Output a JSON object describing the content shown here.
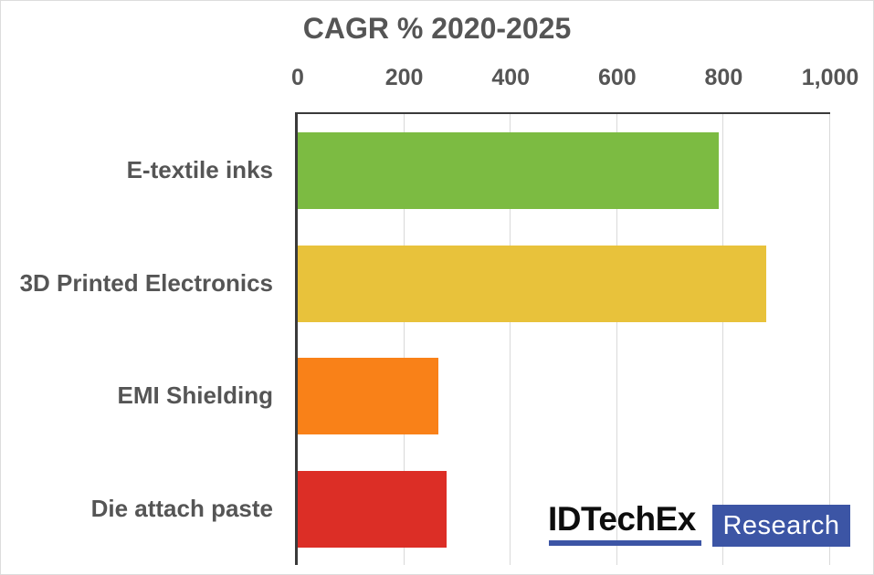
{
  "chart_data": {
    "type": "bar",
    "orientation": "horizontal",
    "title": "CAGR % 2020-2025",
    "categories": [
      "E-textile inks",
      "3D Printed Electronics",
      "EMI Shielding",
      "Die attach paste"
    ],
    "values": [
      790,
      880,
      265,
      280
    ],
    "bar_colors": [
      "#7cbb42",
      "#e8c23b",
      "#f98118",
      "#dc2e26"
    ],
    "xlim": [
      0,
      1000
    ],
    "x_tick_values": [
      0,
      200,
      400,
      600,
      800,
      1000
    ],
    "x_tick_labels": [
      "0",
      "200",
      "400",
      "600",
      "800",
      "1,000"
    ],
    "xlabel": "",
    "ylabel": "",
    "grid": "vertical",
    "legend": "none",
    "gridline_color": "#d9d9d9",
    "axis_line_color": "#3a3a3a",
    "text_color": "#555555"
  },
  "logo": {
    "brand": "IDTechEx",
    "suffix": "Research",
    "brand_text_color": "#0d0d0d",
    "accent_blue": "#3c55a5"
  }
}
